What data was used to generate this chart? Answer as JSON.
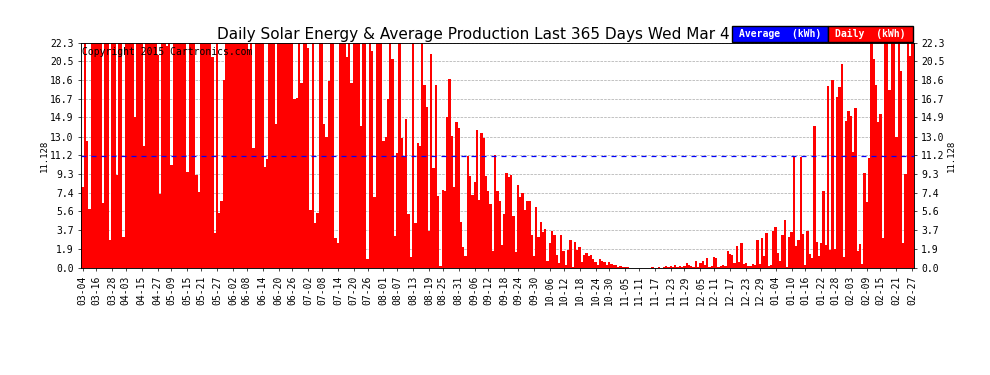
{
  "title": "Daily Solar Energy & Average Production Last 365 Days Wed Mar 4 17:51",
  "copyright": "Copyright 2015 Cartronics.com",
  "average_value": 11.128,
  "average_label": "11.128",
  "bar_color": "#FF0000",
  "average_line_color": "#0000FF",
  "background_color": "#FFFFFF",
  "grid_color": "#AAAAAA",
  "ylim": [
    0.0,
    22.3
  ],
  "yticks": [
    0.0,
    1.9,
    3.7,
    5.6,
    7.4,
    9.3,
    11.2,
    13.0,
    14.9,
    16.7,
    18.6,
    20.5,
    22.3
  ],
  "legend_avg_bg": "#0000FF",
  "legend_daily_bg": "#FF0000",
  "legend_avg_text": "Average  (kWh)",
  "legend_daily_text": "Daily  (kWh)",
  "title_fontsize": 11,
  "tick_fontsize": 7,
  "copyright_fontsize": 7,
  "figsize": [
    9.9,
    3.75
  ],
  "dpi": 100,
  "x_labels": [
    "03-04",
    "03-16",
    "03-28",
    "04-03",
    "04-15",
    "04-27",
    "05-09",
    "05-15",
    "05-21",
    "05-27",
    "06-02",
    "06-08",
    "06-14",
    "06-20",
    "06-26",
    "07-02",
    "07-08",
    "07-14",
    "07-20",
    "07-26",
    "08-01",
    "08-07",
    "08-13",
    "08-19",
    "08-25",
    "08-31",
    "09-06",
    "09-12",
    "09-18",
    "09-24",
    "09-30",
    "10-06",
    "10-12",
    "10-18",
    "10-24",
    "10-30",
    "11-05",
    "11-11",
    "11-17",
    "11-23",
    "11-29",
    "12-05",
    "12-11",
    "12-17",
    "12-23",
    "12-29",
    "01-04",
    "01-10",
    "01-16",
    "01-22",
    "01-28",
    "02-03",
    "02-09",
    "02-15",
    "02-21",
    "02-27"
  ]
}
